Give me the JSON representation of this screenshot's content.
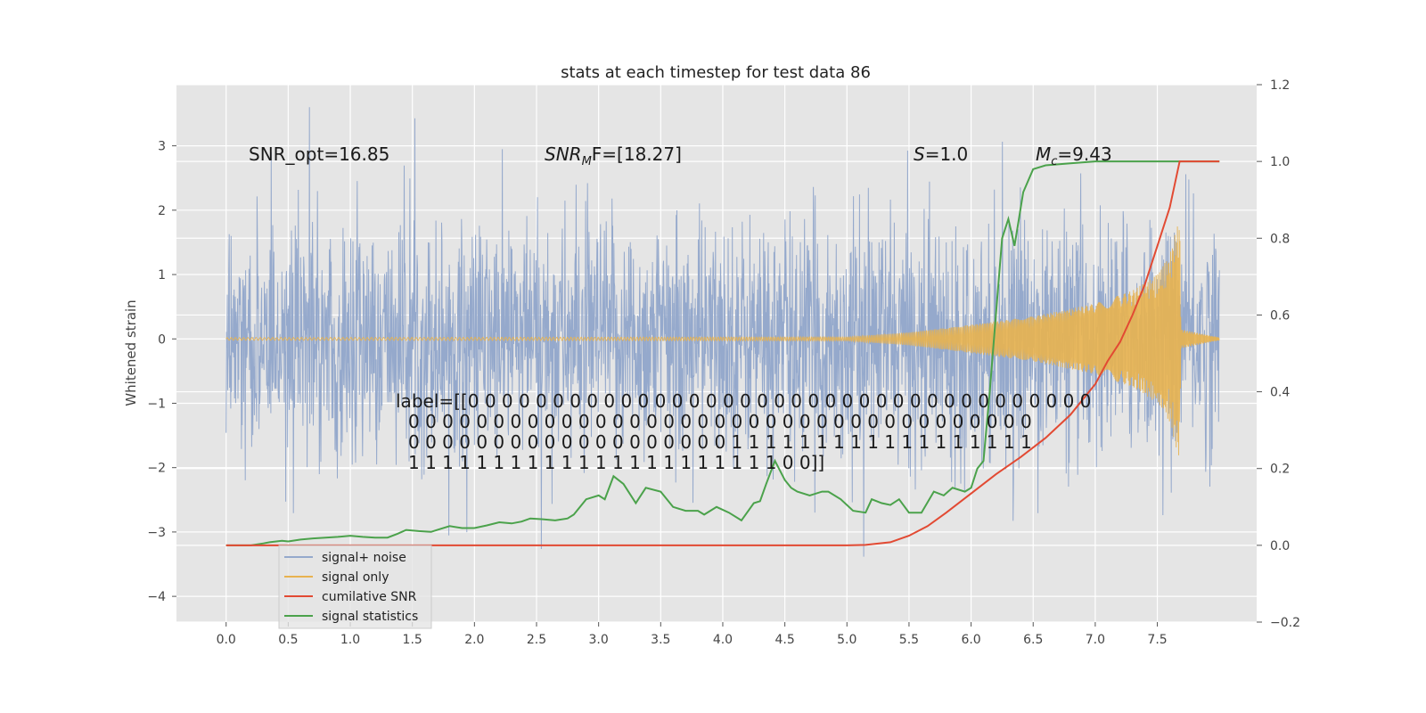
{
  "chart_data": {
    "type": "line",
    "title": "stats at each timestep for test data 86",
    "ylabel": "Whitened strain",
    "xlabel": "",
    "xlim": [
      -0.4,
      8.3
    ],
    "ylim": [
      -4.4,
      3.95
    ],
    "ylim_right": [
      -0.2,
      1.2
    ],
    "x_ticks": [
      0.0,
      0.5,
      1.0,
      1.5,
      2.0,
      2.5,
      3.0,
      3.5,
      4.0,
      4.5,
      5.0,
      5.5,
      6.0,
      6.5,
      7.0,
      7.5
    ],
    "x_tick_labels": [
      "0.0",
      "0.5",
      "1.0",
      "1.5",
      "2.0",
      "2.5",
      "3.0",
      "3.5",
      "4.0",
      "4.5",
      "5.0",
      "5.5",
      "6.0",
      "6.5",
      "7.0",
      "7.5"
    ],
    "y_ticks": [
      -4,
      -3,
      -2,
      -1,
      0,
      1,
      2,
      3
    ],
    "y_tick_labels": [
      "−4",
      "−3",
      "−2",
      "−1",
      "0",
      "1",
      "2",
      "3"
    ],
    "y_right_ticks": [
      -0.2,
      0.0,
      0.2,
      0.4,
      0.6,
      0.8,
      1.0,
      1.2
    ],
    "y_right_tick_labels": [
      "−0.2",
      "0.0",
      "0.2",
      "0.4",
      "0.6",
      "0.8",
      "1.0",
      "1.2"
    ],
    "grid": true,
    "legend_position": "bottom-left",
    "annotations": {
      "snr_opt": "SNR_opt=16.85",
      "snr_mf_name": "SNR",
      "snr_mf_sub": "M",
      "snr_mf_rest": "F=[18.27]",
      "s_name": "S",
      "s_rest": "=1.0",
      "mc_name": "M",
      "mc_sub": "c",
      "mc_rest": "=9.43",
      "label_lines": [
        "label=[[0 0 0 0 0 0 0 0 0 0 0 0 0 0 0 0 0 0 0 0 0 0 0 0 0 0 0 0 0 0 0 0 0 0 0 0 0",
        "0 0 0 0 0 0 0 0 0 0 0 0 0 0 0 0 0 0 0 0 0 0 0 0 0 0 0 0 0 0 0 0 0 0 0 0 0",
        "0 0 0 0 0 0 0 0 0 0 0 0 0 0 0 0 0 0 0 1 1 1 1 1 1 1 1 1 1 1 1 1 1 1 1 1 1",
        "1 1 1 1 1 1 1 1 1 1 1 1 1 1 1 1 1 1 1 1 1 1 0 0]]"
      ]
    },
    "series": [
      {
        "name": "signal+ noise",
        "axis": "left",
        "color": "#95a9cc",
        "envelope_std": 0.9,
        "x_range": [
          0.0,
          8.0
        ]
      },
      {
        "name": "signal only",
        "axis": "left",
        "color": "#e8b24f",
        "x_range": [
          0.0,
          8.0
        ],
        "chirp_end": 7.68,
        "envelope": [
          [
            0.0,
            0.02
          ],
          [
            5.0,
            0.03
          ],
          [
            5.5,
            0.1
          ],
          [
            6.0,
            0.22
          ],
          [
            6.5,
            0.35
          ],
          [
            7.0,
            0.55
          ],
          [
            7.3,
            0.75
          ],
          [
            7.5,
            1.0
          ],
          [
            7.6,
            1.3
          ],
          [
            7.68,
            1.9
          ],
          [
            7.69,
            0.15
          ],
          [
            8.0,
            0.02
          ]
        ]
      },
      {
        "name": "cumilative SNR",
        "axis": "right",
        "color": "#e24a33",
        "points": [
          [
            0.0,
            0.0
          ],
          [
            1.0,
            0.0
          ],
          [
            2.0,
            0.0
          ],
          [
            3.0,
            0.0
          ],
          [
            4.0,
            0.0
          ],
          [
            5.0,
            0.0
          ],
          [
            5.15,
            0.001
          ],
          [
            5.35,
            0.008
          ],
          [
            5.5,
            0.025
          ],
          [
            5.65,
            0.05
          ],
          [
            5.8,
            0.085
          ],
          [
            6.0,
            0.135
          ],
          [
            6.2,
            0.185
          ],
          [
            6.4,
            0.23
          ],
          [
            6.6,
            0.28
          ],
          [
            6.8,
            0.34
          ],
          [
            7.0,
            0.42
          ],
          [
            7.1,
            0.48
          ],
          [
            7.2,
            0.53
          ],
          [
            7.3,
            0.6
          ],
          [
            7.4,
            0.68
          ],
          [
            7.5,
            0.78
          ],
          [
            7.6,
            0.88
          ],
          [
            7.68,
            1.0
          ],
          [
            8.0,
            1.0
          ]
        ]
      },
      {
        "name": "signal statistics",
        "axis": "right",
        "color": "#4ba24b",
        "points": [
          [
            0.0,
            0.0
          ],
          [
            0.2,
            0.0
          ],
          [
            0.3,
            0.005
          ],
          [
            0.35,
            0.008
          ],
          [
            0.45,
            0.012
          ],
          [
            0.5,
            0.01
          ],
          [
            0.6,
            0.015
          ],
          [
            0.7,
            0.018
          ],
          [
            0.8,
            0.02
          ],
          [
            0.9,
            0.022
          ],
          [
            1.0,
            0.025
          ],
          [
            1.1,
            0.022
          ],
          [
            1.2,
            0.02
          ],
          [
            1.3,
            0.02
          ],
          [
            1.38,
            0.03
          ],
          [
            1.45,
            0.04
          ],
          [
            1.55,
            0.037
          ],
          [
            1.65,
            0.035
          ],
          [
            1.7,
            0.04
          ],
          [
            1.8,
            0.05
          ],
          [
            1.9,
            0.045
          ],
          [
            2.0,
            0.045
          ],
          [
            2.1,
            0.052
          ],
          [
            2.2,
            0.06
          ],
          [
            2.3,
            0.057
          ],
          [
            2.38,
            0.062
          ],
          [
            2.45,
            0.07
          ],
          [
            2.55,
            0.068
          ],
          [
            2.65,
            0.065
          ],
          [
            2.75,
            0.07
          ],
          [
            2.8,
            0.08
          ],
          [
            2.9,
            0.12
          ],
          [
            3.0,
            0.13
          ],
          [
            3.05,
            0.12
          ],
          [
            3.12,
            0.18
          ],
          [
            3.2,
            0.16
          ],
          [
            3.3,
            0.11
          ],
          [
            3.38,
            0.15
          ],
          [
            3.5,
            0.14
          ],
          [
            3.6,
            0.1
          ],
          [
            3.7,
            0.09
          ],
          [
            3.8,
            0.09
          ],
          [
            3.85,
            0.08
          ],
          [
            3.95,
            0.1
          ],
          [
            4.05,
            0.085
          ],
          [
            4.15,
            0.065
          ],
          [
            4.25,
            0.11
          ],
          [
            4.3,
            0.115
          ],
          [
            4.35,
            0.16
          ],
          [
            4.42,
            0.22
          ],
          [
            4.5,
            0.17
          ],
          [
            4.55,
            0.15
          ],
          [
            4.6,
            0.14
          ],
          [
            4.7,
            0.13
          ],
          [
            4.8,
            0.14
          ],
          [
            4.85,
            0.14
          ],
          [
            4.95,
            0.12
          ],
          [
            5.05,
            0.09
          ],
          [
            5.15,
            0.085
          ],
          [
            5.2,
            0.12
          ],
          [
            5.28,
            0.11
          ],
          [
            5.35,
            0.105
          ],
          [
            5.42,
            0.12
          ],
          [
            5.5,
            0.085
          ],
          [
            5.6,
            0.085
          ],
          [
            5.7,
            0.14
          ],
          [
            5.78,
            0.13
          ],
          [
            5.85,
            0.15
          ],
          [
            5.95,
            0.14
          ],
          [
            6.0,
            0.15
          ],
          [
            6.05,
            0.2
          ],
          [
            6.1,
            0.22
          ],
          [
            6.15,
            0.4
          ],
          [
            6.2,
            0.6
          ],
          [
            6.25,
            0.8
          ],
          [
            6.3,
            0.85
          ],
          [
            6.35,
            0.78
          ],
          [
            6.42,
            0.92
          ],
          [
            6.5,
            0.98
          ],
          [
            6.6,
            0.99
          ],
          [
            6.8,
            0.995
          ],
          [
            7.0,
            1.0
          ],
          [
            7.5,
            1.0
          ],
          [
            8.0,
            1.0
          ]
        ]
      }
    ]
  }
}
